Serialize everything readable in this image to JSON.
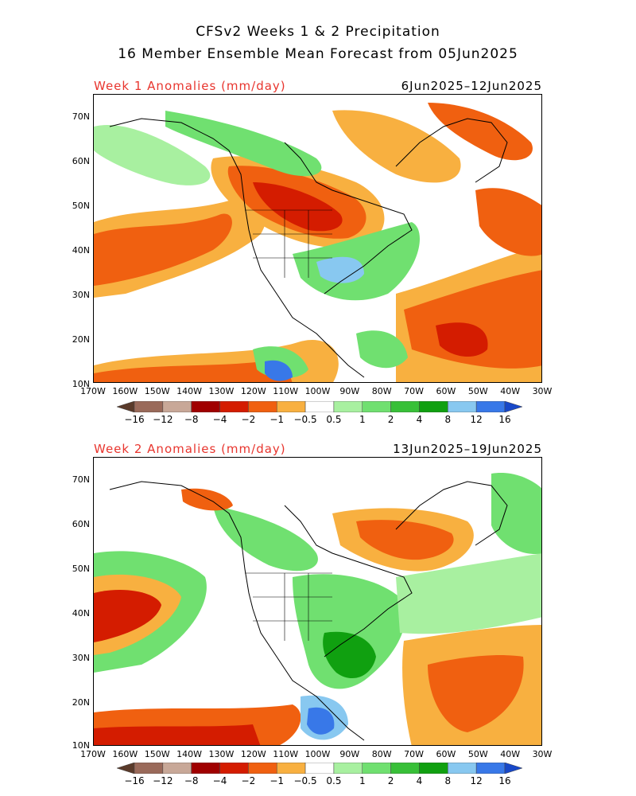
{
  "header": {
    "title_line1": "CFSv2 Weeks 1 & 2 Precipitation",
    "title_line2": "16 Member Ensemble Mean Forecast from 05Jun2025"
  },
  "panels": [
    {
      "label": "Week 1 Anomalies (mm/day)",
      "dates": "6Jun2025–12Jun2025"
    },
    {
      "label": "Week 2 Anomalies (mm/day)",
      "dates": "13Jun2025–19Jun2025"
    }
  ],
  "axes": {
    "lat_labels": [
      "70N",
      "60N",
      "50N",
      "40N",
      "30N",
      "20N",
      "10N"
    ],
    "lon_labels": [
      "170W",
      "160W",
      "150W",
      "140W",
      "130W",
      "120W",
      "110W",
      "100W",
      "90W",
      "80W",
      "70W",
      "60W",
      "50W",
      "40W",
      "30W"
    ]
  },
  "colorbar": {
    "labels": [
      "−16",
      "−12",
      "−8",
      "−4",
      "−2",
      "−1",
      "−0.5",
      "0.5",
      "1",
      "2",
      "4",
      "8",
      "12",
      "16"
    ],
    "colors": [
      "#5a3a2a",
      "#9a6a5a",
      "#c8a898",
      "#a00000",
      "#d41c00",
      "#f06010",
      "#f8b040",
      "#ffffff",
      "#a8f0a0",
      "#70e070",
      "#38c038",
      "#10a010",
      "#88c8f0",
      "#3878e8",
      "#1848c8"
    ]
  }
}
